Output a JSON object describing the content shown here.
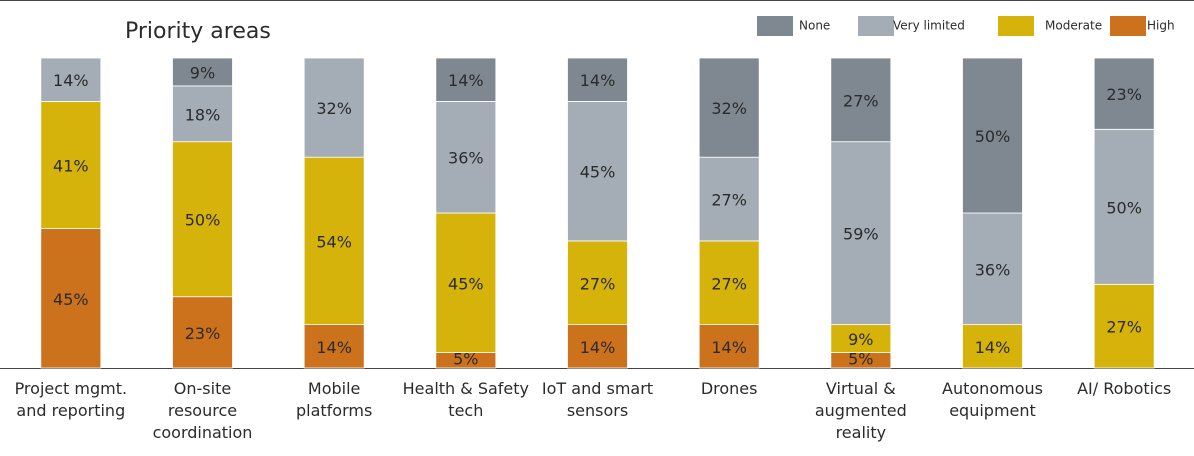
{
  "chart_data": {
    "type": "stacked_bar",
    "title": "Priority areas",
    "categories": [
      "Project mgmt. and reporting",
      "On-site resource coordination",
      "Mobile platforms",
      "Health & Safety tech",
      "IoT and smart sensors",
      "Drones",
      "Virtual & augmented reality",
      "Autonomous equipment",
      "AI/ Robotics"
    ],
    "ylim": [
      0,
      100
    ],
    "legend": "top-right",
    "series": [
      {
        "name": "High",
        "color": "#cc711c",
        "values": [
          45,
          23,
          14,
          5,
          14,
          14,
          5,
          null,
          null
        ],
        "value_labels": [
          "45%",
          "23%",
          "14%",
          "5%",
          "14%",
          "14%",
          "5%",
          null,
          null
        ]
      },
      {
        "name": "Moderate",
        "color": "#d6b30a",
        "values": [
          41,
          50,
          54,
          45,
          27,
          27,
          9,
          14,
          27
        ],
        "value_labels": [
          "41%",
          "50%",
          "54%",
          "45%",
          "27%",
          "27%",
          "9%",
          "14%",
          "27%"
        ]
      },
      {
        "name": "Very limited",
        "color": "#a4adb5",
        "values": [
          14,
          18,
          32,
          36,
          45,
          27,
          59,
          36,
          50
        ],
        "value_labels": [
          "14%",
          "18%",
          "32%",
          "36%",
          "45%",
          "27%",
          "59%",
          "36%",
          "50%"
        ]
      },
      {
        "name": "None",
        "color": "#7f8890",
        "values": [
          null,
          9,
          null,
          14,
          14,
          32,
          27,
          50,
          23
        ],
        "value_labels": [
          null,
          "9%",
          null,
          "14%",
          "14%",
          "32%",
          "27%",
          "50%",
          "23%"
        ]
      }
    ]
  }
}
